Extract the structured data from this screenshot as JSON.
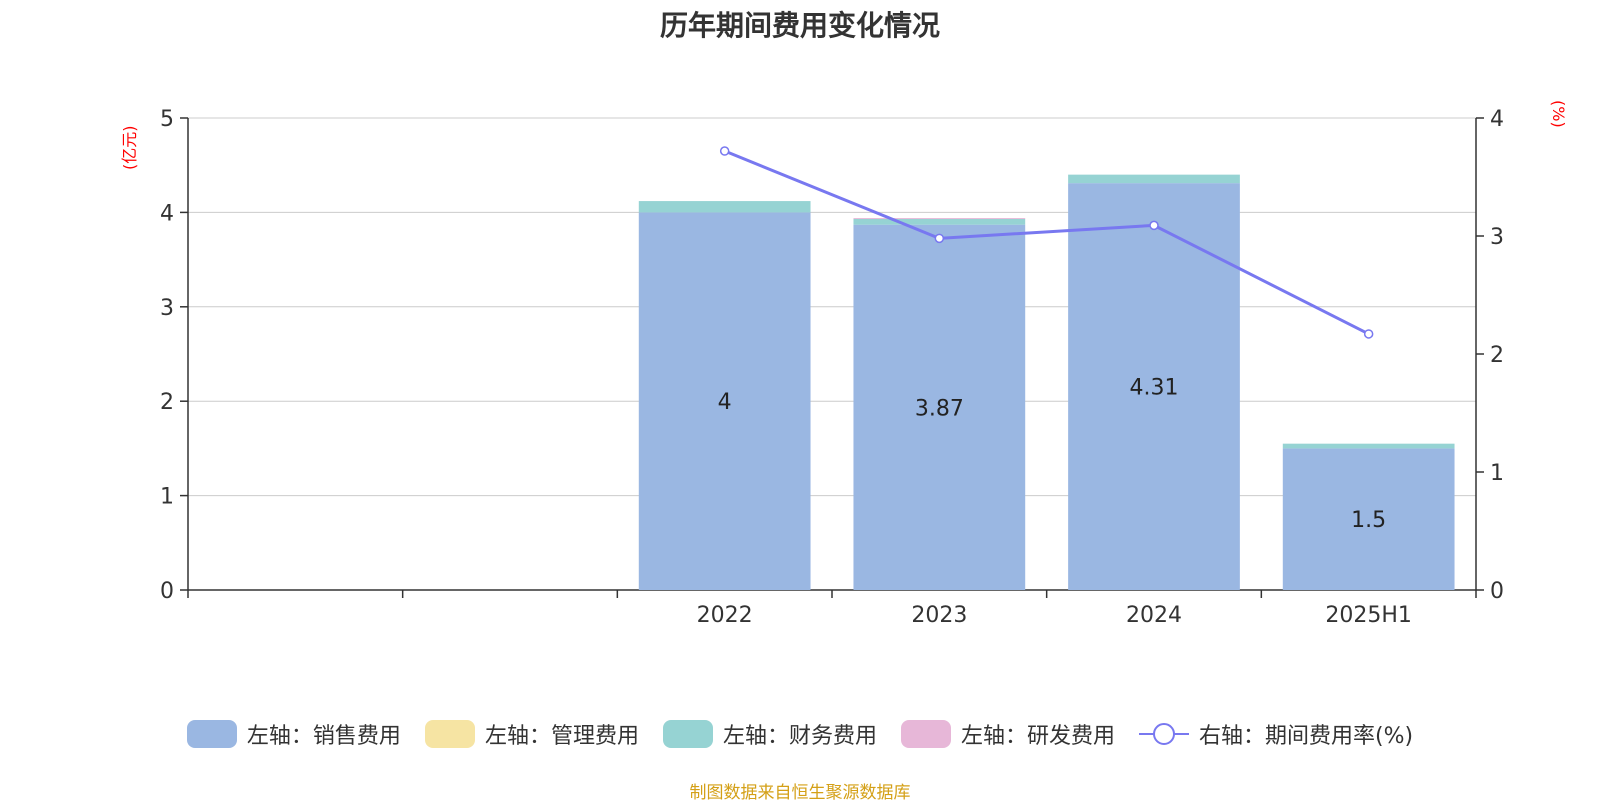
{
  "title": "历年期间费用变化情况",
  "left_unit": "(亿元)",
  "right_unit": "(%)",
  "source": "制图数据来自恒生聚源数据库",
  "legend": [
    {
      "label": "左轴：销售费用",
      "color": "#9ab7e2",
      "kind": "bar"
    },
    {
      "label": "左轴：管理费用",
      "color": "#f6e4a3",
      "kind": "bar"
    },
    {
      "label": "左轴：财务费用",
      "color": "#96d3d3",
      "kind": "bar"
    },
    {
      "label": "左轴：研发费用",
      "color": "#e7b7d8",
      "kind": "bar"
    },
    {
      "label": "右轴：期间费用率(%)",
      "color": "#7878f0",
      "kind": "line"
    }
  ],
  "chart_data": {
    "type": "bar",
    "categories": [
      "",
      "",
      "2022",
      "2023",
      "2024",
      "2025H1"
    ],
    "series": [
      {
        "name": "左轴：销售费用",
        "axis": "left",
        "color": "#9ab7e2",
        "values": [
          null,
          null,
          4,
          3.87,
          4.31,
          1.5
        ],
        "labels": [
          "",
          "",
          "4",
          "3.87",
          "4.31",
          "1.5"
        ]
      },
      {
        "name": "左轴：管理费用",
        "axis": "left",
        "color": "#f6e4a3",
        "values": [
          null,
          null,
          0,
          0,
          0,
          0
        ]
      },
      {
        "name": "左轴：财务费用",
        "axis": "left",
        "color": "#96d3d3",
        "values": [
          null,
          null,
          0.12,
          0.06,
          0.09,
          0.05
        ]
      },
      {
        "name": "左轴：研发费用",
        "axis": "left",
        "color": "#e7b7d8",
        "values": [
          null,
          null,
          0,
          0.01,
          0,
          0
        ]
      },
      {
        "name": "右轴：期间费用率(%)",
        "axis": "right",
        "type": "line",
        "color": "#7878f0",
        "values": [
          null,
          null,
          3.72,
          2.98,
          3.09,
          2.17
        ]
      }
    ],
    "left_axis": {
      "min": 0,
      "max": 5,
      "ticks": [
        "0",
        "1",
        "2",
        "3",
        "4",
        "5"
      ]
    },
    "right_axis": {
      "min": 0,
      "max": 4,
      "ticks": [
        "0",
        "1",
        "2",
        "3",
        "4"
      ]
    },
    "grid": true,
    "legend_position": "bottom"
  }
}
